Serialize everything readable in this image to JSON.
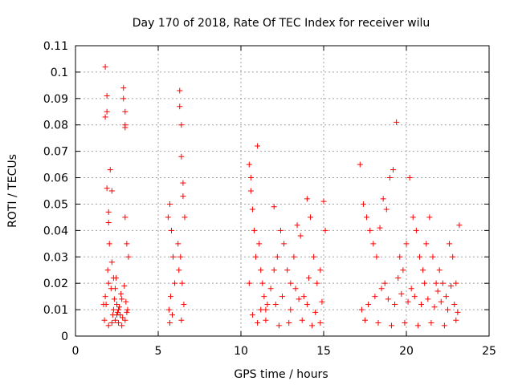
{
  "chart_data": {
    "type": "scatter",
    "title": "Day 170 of 2018, Rate Of TEC Index for receiver wilu",
    "xlabel": "GPS time / hours",
    "ylabel": "ROTI / TECUs",
    "xlim": [
      0,
      25
    ],
    "ylim": [
      0,
      0.11
    ],
    "x_ticks": [
      "0",
      "5",
      "10",
      "15",
      "20",
      "25"
    ],
    "y_ticks": [
      "0",
      "0.01",
      "0.02",
      "0.03",
      "0.04",
      "0.05",
      "0.06",
      "0.07",
      "0.08",
      "0.09",
      "0.1",
      "0.11"
    ],
    "grid": true,
    "marker": "plus",
    "color": "#ff0000",
    "series": [
      {
        "name": "ROTI",
        "x": [
          1.8,
          1.8,
          1.9,
          1.9,
          1.9,
          2.0,
          2.0,
          2.1,
          2.2,
          2.2,
          2.3,
          2.4,
          2.5,
          2.6,
          2.7,
          2.9,
          2.9,
          3.0,
          3.0,
          3.0,
          3.0,
          3.1,
          3.2,
          1.7,
          1.8,
          2.0,
          2.3,
          2.5,
          2.8,
          3.1,
          1.75,
          1.85,
          1.95,
          2.05,
          2.15,
          2.25,
          2.35,
          2.45,
          2.55,
          2.65,
          2.75,
          2.85,
          2.95,
          3.05,
          3.15,
          2.0,
          2.2,
          2.4,
          2.6,
          2.8,
          3.0,
          5.6,
          5.7,
          5.8,
          5.9,
          6.0,
          6.2,
          6.3,
          6.3,
          6.4,
          6.4,
          6.5,
          6.5,
          6.6,
          5.65,
          5.75,
          5.85,
          6.25,
          6.35,
          6.45,
          6.55,
          5.7,
          6.4,
          10.5,
          10.6,
          10.6,
          10.7,
          10.8,
          10.9,
          11.0,
          11.1,
          11.2,
          11.3,
          11.4,
          11.5,
          11.6,
          11.8,
          12.0,
          12.2,
          12.4,
          12.6,
          12.8,
          13.0,
          13.2,
          13.4,
          13.6,
          13.8,
          14.0,
          14.2,
          14.4,
          14.6,
          14.8,
          15.0,
          15.1,
          10.7,
          11.2,
          12.1,
          12.5,
          13.0,
          13.5,
          14.0,
          14.5,
          14.9,
          11.0,
          11.5,
          12.3,
          12.9,
          13.7,
          14.3,
          14.8,
          10.5,
          12.0,
          13.3,
          14.1,
          17.2,
          17.4,
          17.6,
          17.8,
          18.0,
          18.2,
          18.4,
          18.6,
          18.8,
          19.0,
          19.2,
          19.4,
          19.6,
          19.8,
          20.0,
          20.2,
          20.4,
          20.6,
          20.8,
          21.0,
          21.2,
          21.4,
          21.6,
          21.8,
          22.0,
          22.2,
          22.4,
          22.6,
          22.8,
          23.0,
          23.2,
          17.3,
          17.7,
          18.1,
          18.5,
          18.9,
          19.3,
          19.7,
          20.1,
          20.5,
          20.9,
          21.3,
          21.7,
          22.1,
          22.5,
          22.9,
          23.1,
          17.5,
          18.3,
          19.1,
          19.9,
          20.7,
          21.5,
          22.3,
          23.0,
          18.7,
          19.5,
          20.3,
          21.1,
          21.9,
          22.7
        ],
        "y": [
          0.102,
          0.083,
          0.091,
          0.085,
          0.056,
          0.047,
          0.043,
          0.063,
          0.055,
          0.028,
          0.022,
          0.018,
          0.012,
          0.01,
          0.008,
          0.094,
          0.09,
          0.085,
          0.08,
          0.079,
          0.045,
          0.035,
          0.03,
          0.012,
          0.015,
          0.02,
          0.01,
          0.008,
          0.014,
          0.009,
          0.006,
          0.012,
          0.025,
          0.035,
          0.018,
          0.008,
          0.014,
          0.022,
          0.009,
          0.011,
          0.016,
          0.007,
          0.019,
          0.013,
          0.01,
          0.004,
          0.005,
          0.006,
          0.005,
          0.004,
          0.006,
          0.045,
          0.05,
          0.04,
          0.03,
          0.02,
          0.035,
          0.093,
          0.087,
          0.08,
          0.068,
          0.058,
          0.053,
          0.045,
          0.01,
          0.015,
          0.008,
          0.025,
          0.03,
          0.02,
          0.012,
          0.005,
          0.006,
          0.065,
          0.06,
          0.055,
          0.048,
          0.04,
          0.03,
          0.072,
          0.035,
          0.025,
          0.02,
          0.015,
          0.01,
          0.012,
          0.018,
          0.049,
          0.03,
          0.04,
          0.035,
          0.025,
          0.02,
          0.03,
          0.042,
          0.038,
          0.015,
          0.052,
          0.045,
          0.03,
          0.02,
          0.025,
          0.051,
          0.04,
          0.008,
          0.01,
          0.012,
          0.015,
          0.01,
          0.014,
          0.012,
          0.009,
          0.013,
          0.005,
          0.006,
          0.004,
          0.005,
          0.006,
          0.004,
          0.005,
          0.02,
          0.025,
          0.018,
          0.022,
          0.065,
          0.05,
          0.045,
          0.04,
          0.035,
          0.03,
          0.041,
          0.052,
          0.048,
          0.06,
          0.063,
          0.081,
          0.03,
          0.025,
          0.035,
          0.06,
          0.045,
          0.04,
          0.03,
          0.025,
          0.035,
          0.045,
          0.03,
          0.02,
          0.025,
          0.02,
          0.015,
          0.035,
          0.03,
          0.02,
          0.042,
          0.01,
          0.012,
          0.015,
          0.018,
          0.014,
          0.012,
          0.016,
          0.013,
          0.015,
          0.012,
          0.014,
          0.011,
          0.013,
          0.01,
          0.012,
          0.009,
          0.006,
          0.005,
          0.004,
          0.005,
          0.004,
          0.005,
          0.004,
          0.006,
          0.02,
          0.022,
          0.018,
          0.02,
          0.017,
          0.019
        ]
      }
    ]
  }
}
